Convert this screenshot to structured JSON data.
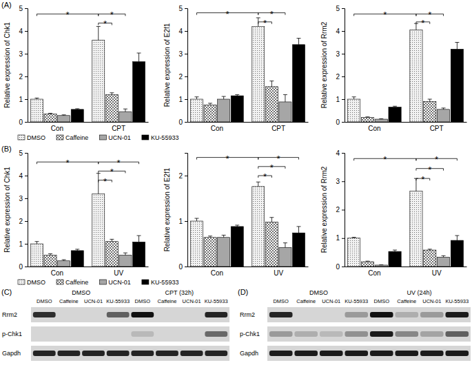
{
  "chart_data": [
    {
      "type": "bar",
      "categories": [
        "Con",
        "CPT"
      ],
      "y_label": "Relative expression of Chk1",
      "ylim": [
        0,
        5
      ],
      "yticks": [
        0,
        1,
        2,
        3,
        4,
        5
      ],
      "legend": "bottom",
      "series": [
        {
          "name": "DMSO",
          "color": "#f2f2f2",
          "values": [
            1.0,
            3.6
          ],
          "errors": [
            0.05,
            0.6
          ]
        },
        {
          "name": "Caffeine",
          "color": "#ffffff",
          "values": [
            0.35,
            1.2
          ],
          "errors": [
            0.03,
            0.08
          ]
        },
        {
          "name": "UCN-01",
          "color": "#a6a6a6",
          "values": [
            0.28,
            0.45
          ],
          "errors": [
            0.03,
            0.12
          ]
        },
        {
          "name": "KU-55933",
          "color": "#000000",
          "values": [
            0.55,
            2.65
          ],
          "errors": [
            0.03,
            0.38
          ]
        }
      ],
      "annotations": [
        {
          "text": "*",
          "from": [
            0,
            0
          ],
          "to": [
            1,
            0
          ],
          "y": 4.75
        },
        {
          "text": "*",
          "from": [
            1,
            0
          ],
          "to": [
            1,
            2
          ],
          "y": 4.75
        },
        {
          "text": "*",
          "from": [
            1,
            0
          ],
          "to": [
            1,
            1
          ],
          "y": 4.35
        }
      ]
    },
    {
      "type": "bar",
      "categories": [
        "Con",
        "CPT"
      ],
      "y_label": "Relative expression of E2f1",
      "ylim": [
        0,
        5
      ],
      "yticks": [
        0,
        1,
        2,
        3,
        4,
        5
      ],
      "series": [
        {
          "color": "#f2f2f2",
          "values": [
            1.0,
            4.2
          ],
          "errors": [
            0.1,
            0.38
          ]
        },
        {
          "color": "#ffffff",
          "values": [
            0.75,
            1.55
          ],
          "errors": [
            0.07,
            0.25
          ]
        },
        {
          "color": "#a6a6a6",
          "values": [
            1.0,
            0.88
          ],
          "errors": [
            0.12,
            0.32
          ]
        },
        {
          "color": "#000000",
          "values": [
            1.15,
            3.4
          ],
          "errors": [
            0.05,
            0.28
          ]
        }
      ],
      "annotations": [
        {
          "text": "*",
          "from": [
            0,
            0
          ],
          "to": [
            1,
            0
          ],
          "y": 4.8
        },
        {
          "text": "*",
          "from": [
            1,
            0
          ],
          "to": [
            1,
            2
          ],
          "y": 4.8
        },
        {
          "text": "*",
          "from": [
            1,
            0
          ],
          "to": [
            1,
            1
          ],
          "y": 4.4
        }
      ]
    },
    {
      "type": "bar",
      "categories": [
        "Con",
        "CPT"
      ],
      "y_label": "Relative expression of Rrm2",
      "ylim": [
        0,
        5
      ],
      "yticks": [
        0,
        1,
        2,
        3,
        4,
        5
      ],
      "series": [
        {
          "color": "#f2f2f2",
          "values": [
            1.0,
            4.05
          ],
          "errors": [
            0.1,
            0.28
          ]
        },
        {
          "color": "#ffffff",
          "values": [
            0.2,
            0.9
          ],
          "errors": [
            0.02,
            0.1
          ]
        },
        {
          "color": "#a6a6a6",
          "values": [
            0.12,
            0.55
          ],
          "errors": [
            0.02,
            0.06
          ]
        },
        {
          "color": "#000000",
          "values": [
            0.65,
            3.2
          ],
          "errors": [
            0.04,
            0.3
          ]
        }
      ],
      "annotations": [
        {
          "text": "*",
          "from": [
            0,
            0
          ],
          "to": [
            1,
            0
          ],
          "y": 4.75
        },
        {
          "text": "*",
          "from": [
            1,
            0
          ],
          "to": [
            1,
            2
          ],
          "y": 4.75
        },
        {
          "text": "*",
          "from": [
            1,
            0
          ],
          "to": [
            1,
            1
          ],
          "y": 4.4
        }
      ]
    },
    {
      "type": "bar",
      "categories": [
        "Con",
        "UV"
      ],
      "y_label": "Relative expression of Chk1",
      "ylim": [
        0,
        5
      ],
      "yticks": [
        0,
        1,
        2,
        3,
        4,
        5
      ],
      "legend": "bottom",
      "series": [
        {
          "name": "DMSO",
          "color": "#f2f2f2",
          "values": [
            1.0,
            3.2
          ],
          "errors": [
            0.1,
            0.9
          ]
        },
        {
          "name": "Caffeine",
          "color": "#ffffff",
          "values": [
            0.5,
            1.1
          ],
          "errors": [
            0.06,
            0.1
          ]
        },
        {
          "name": "UCN-01",
          "color": "#a6a6a6",
          "values": [
            0.25,
            0.5
          ],
          "errors": [
            0.05,
            0.1
          ]
        },
        {
          "name": "KU-55933",
          "color": "#000000",
          "values": [
            0.7,
            1.08
          ],
          "errors": [
            0.06,
            0.28
          ]
        }
      ],
      "annotations": [
        {
          "text": "*",
          "from": [
            0,
            0
          ],
          "to": [
            1,
            0
          ],
          "y": 4.6
        },
        {
          "text": "*",
          "from": [
            1,
            0
          ],
          "to": [
            1,
            3
          ],
          "y": 4.6
        },
        {
          "text": "*",
          "from": [
            1,
            0
          ],
          "to": [
            1,
            2
          ],
          "y": 4.2
        },
        {
          "text": "*",
          "from": [
            1,
            0
          ],
          "to": [
            1,
            1
          ],
          "y": 3.8
        }
      ]
    },
    {
      "type": "bar",
      "categories": [
        "Con",
        "UV"
      ],
      "y_label": "Relative expression of E2f1",
      "ylim": [
        0,
        2.5
      ],
      "yticks": [
        0,
        1,
        2
      ],
      "series": [
        {
          "color": "#f2f2f2",
          "values": [
            1.0,
            1.76
          ],
          "errors": [
            0.06,
            0.1
          ]
        },
        {
          "color": "#ffffff",
          "values": [
            0.64,
            0.98
          ],
          "errors": [
            0.03,
            0.1
          ]
        },
        {
          "color": "#a6a6a6",
          "values": [
            0.64,
            0.42
          ],
          "errors": [
            0.05,
            0.1
          ]
        },
        {
          "color": "#000000",
          "values": [
            0.88,
            0.74
          ],
          "errors": [
            0.03,
            0.14
          ]
        }
      ],
      "annotations": [
        {
          "text": "*",
          "from": [
            0,
            0
          ],
          "to": [
            1,
            0
          ],
          "y": 2.4
        },
        {
          "text": "*",
          "from": [
            1,
            0
          ],
          "to": [
            1,
            3
          ],
          "y": 2.4
        },
        {
          "text": "*",
          "from": [
            1,
            0
          ],
          "to": [
            1,
            2
          ],
          "y": 2.2
        },
        {
          "text": "*",
          "from": [
            1,
            0
          ],
          "to": [
            1,
            1
          ],
          "y": 2.0
        }
      ]
    },
    {
      "type": "bar",
      "categories": [
        "Con",
        "UV"
      ],
      "y_label": "Relative expression of Rrm2",
      "ylim": [
        0,
        4
      ],
      "yticks": [
        0,
        1,
        2,
        3,
        4
      ],
      "series": [
        {
          "color": "#f2f2f2",
          "values": [
            1.0,
            2.65
          ],
          "errors": [
            0.03,
            0.45
          ]
        },
        {
          "color": "#ffffff",
          "values": [
            0.17,
            0.58
          ],
          "errors": [
            0.02,
            0.03
          ]
        },
        {
          "color": "#a6a6a6",
          "values": [
            0.05,
            0.33
          ],
          "errors": [
            0.01,
            0.05
          ]
        },
        {
          "color": "#000000",
          "values": [
            0.53,
            0.92
          ],
          "errors": [
            0.05,
            0.17
          ]
        }
      ],
      "annotations": [
        {
          "text": "*",
          "from": [
            0,
            0
          ],
          "to": [
            1,
            0
          ],
          "y": 3.8
        },
        {
          "text": "*",
          "from": [
            1,
            0
          ],
          "to": [
            1,
            3
          ],
          "y": 3.8
        },
        {
          "text": "*",
          "from": [
            1,
            0
          ],
          "to": [
            1,
            2
          ],
          "y": 3.45
        },
        {
          "text": "*",
          "from": [
            1,
            0
          ],
          "to": [
            1,
            1
          ],
          "y": 3.1
        }
      ]
    }
  ],
  "panel_labels": [
    "(A)",
    "(B)",
    "(C)",
    "(D)"
  ],
  "blots": [
    {
      "groups": [
        "DMSO",
        "CPT (32h)"
      ],
      "lanes": [
        "DMSO",
        "Caffeine",
        "UCN-01",
        "KU-55933",
        "DMSO",
        "Caffeine",
        "UCN-01",
        "KU-55933"
      ],
      "rows": [
        {
          "label": "Rrm2",
          "bands": [
            0.85,
            0,
            0,
            0.6,
            1,
            0,
            0,
            0.9
          ]
        },
        {
          "label": "p-Chk1",
          "bands": [
            0,
            0,
            0,
            0,
            0.15,
            0,
            0,
            0.55
          ]
        },
        {
          "label": "Gapdh",
          "bands": [
            0.9,
            0.9,
            0.9,
            0.9,
            0.9,
            0.9,
            0.9,
            0.9
          ]
        }
      ]
    },
    {
      "groups": [
        "DMSO",
        "UV (24h)"
      ],
      "lanes": [
        "DMSO",
        "Caffeine",
        "UCN-01",
        "KU-55933",
        "DMSO",
        "Caffeine",
        "UCN-01",
        "KU-55933"
      ],
      "rows": [
        {
          "label": "Rrm2",
          "bands": [
            0.9,
            0,
            0,
            0.3,
            1,
            0.2,
            0.3,
            0.95
          ]
        },
        {
          "label": "p-Chk1",
          "bands": [
            0.3,
            0.2,
            0.15,
            0.35,
            0.95,
            0.4,
            0.25,
            0.6
          ]
        },
        {
          "label": "Gapdh",
          "bands": [
            0.95,
            0.95,
            0.95,
            0.95,
            0.95,
            0.95,
            0.95,
            0.95
          ]
        }
      ]
    }
  ]
}
